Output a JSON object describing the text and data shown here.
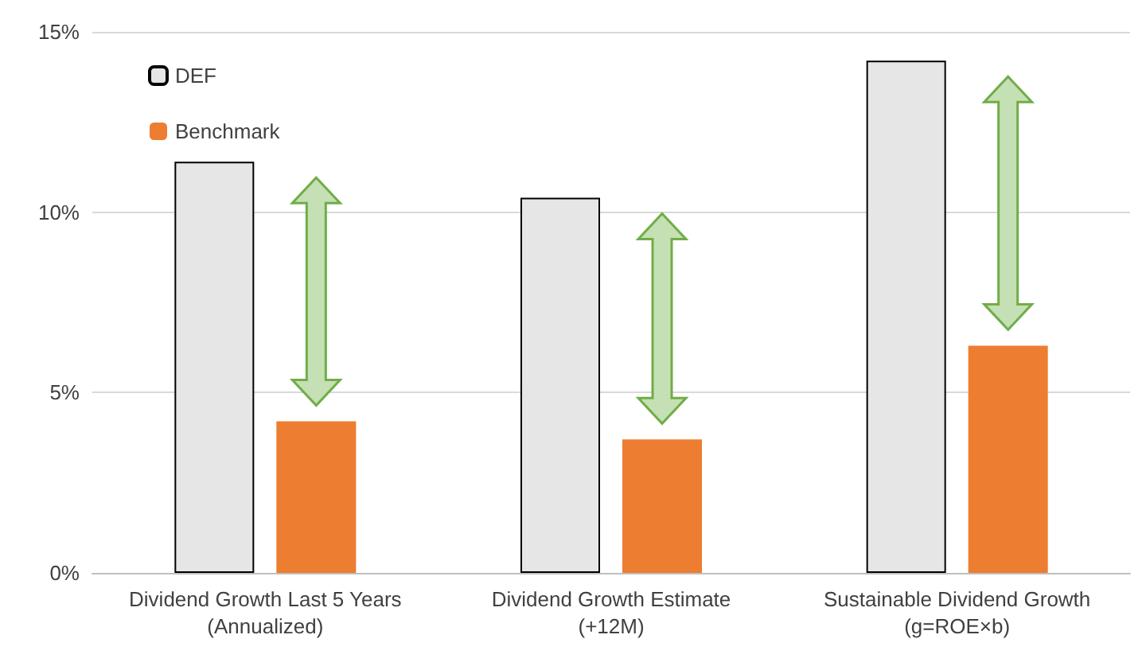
{
  "chart_data": {
    "type": "bar",
    "categories": [
      "Dividend Growth Last 5 Years\n(Annualized)",
      "Dividend Growth Estimate\n(+12M)",
      "Sustainable Dividend Growth\n(g=ROE×b)"
    ],
    "series": [
      {
        "name": "DEF",
        "color": "#e7e6e6",
        "values": [
          11.4,
          10.4,
          14.2
        ]
      },
      {
        "name": "Benchmark",
        "color": "#ed7d31",
        "values": [
          4.2,
          3.7,
          6.3
        ]
      }
    ],
    "ylim": [
      0,
      15
    ],
    "yticks": [
      {
        "value": 0,
        "label": "0%"
      },
      {
        "value": 5,
        "label": "5%"
      },
      {
        "value": 10,
        "label": "10%"
      },
      {
        "value": 15,
        "label": "15%"
      }
    ],
    "grid": "y",
    "legend": "top left"
  }
}
